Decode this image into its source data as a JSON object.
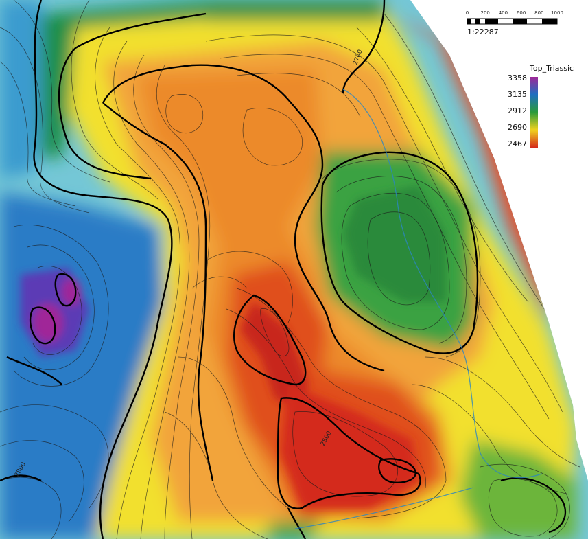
{
  "map": {
    "legend": {
      "title": "Top_Triassic",
      "values": [
        "3358",
        "3135",
        "2912",
        "2690",
        "2467"
      ],
      "colors": [
        "#a02898",
        "#1f6fc0",
        "#2a9a3a",
        "#f0d21e",
        "#d42a1c"
      ]
    },
    "scale_bar": {
      "ticks": [
        "0",
        "200",
        "400",
        "600",
        "800",
        "1000"
      ],
      "ratio": "1:22287"
    },
    "contour_labels": [
      "2700",
      "2500",
      "2800"
    ]
  }
}
